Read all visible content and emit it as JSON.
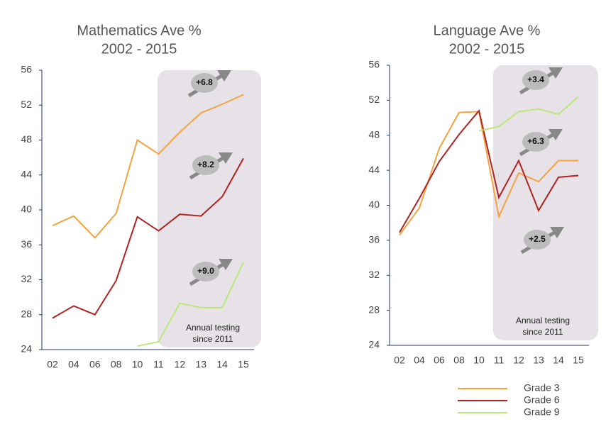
{
  "chart_data": [
    {
      "type": "line",
      "title": "Mathematics Ave %",
      "subtitle": "2002 - 2015",
      "categories": [
        "02",
        "04",
        "06",
        "08",
        "10",
        "11",
        "12",
        "13",
        "14",
        "15"
      ],
      "ylim": [
        24,
        56
      ],
      "yticks": [
        24,
        28,
        32,
        36,
        40,
        44,
        48,
        52,
        56
      ],
      "series": [
        {
          "color": "#f4a340",
          "values": [
            38.2,
            39.3,
            36.8,
            39.6,
            48.0,
            46.4,
            48.9,
            51.1,
            52.1,
            53.2
          ]
        },
        {
          "color": "#b22222",
          "values": [
            27.6,
            29.0,
            28.0,
            31.9,
            39.2,
            37.6,
            39.5,
            39.3,
            41.5,
            45.9
          ]
        },
        {
          "color": "#bde67a",
          "values": [
            null,
            null,
            null,
            null,
            24.4,
            24.9,
            29.3,
            28.8,
            28.8,
            34.0
          ]
        }
      ],
      "annotations": [
        "+6.8",
        "+8.2",
        "+9.0"
      ],
      "note": [
        "Annual testing",
        "since 2011"
      ]
    },
    {
      "type": "line",
      "title": "Language Ave %",
      "subtitle": "2002 - 2015",
      "categories": [
        "02",
        "04",
        "06",
        "08",
        "10",
        "11",
        "12",
        "13",
        "14",
        "15"
      ],
      "ylim": [
        24,
        56
      ],
      "yticks": [
        24,
        28,
        32,
        36,
        40,
        44,
        48,
        52,
        56
      ],
      "series": [
        {
          "name": "Grade 3",
          "color": "#f4a340",
          "values": [
            36.6,
            39.7,
            46.5,
            50.6,
            50.7,
            38.7,
            43.7,
            42.7,
            45.1,
            45.1
          ]
        },
        {
          "name": "Grade 6",
          "color": "#b22222",
          "values": [
            36.9,
            40.8,
            45.0,
            48.1,
            50.8,
            40.9,
            45.1,
            39.4,
            43.2,
            43.4
          ]
        },
        {
          "name": "Grade 9",
          "color": "#bde67a",
          "values": [
            null,
            null,
            null,
            null,
            48.5,
            49.0,
            50.7,
            51.0,
            50.4,
            52.4
          ]
        }
      ],
      "annotations": [
        "+3.4",
        "+6.3",
        "+2.5"
      ],
      "note": [
        "Annual testing",
        "since 2011"
      ]
    }
  ]
}
